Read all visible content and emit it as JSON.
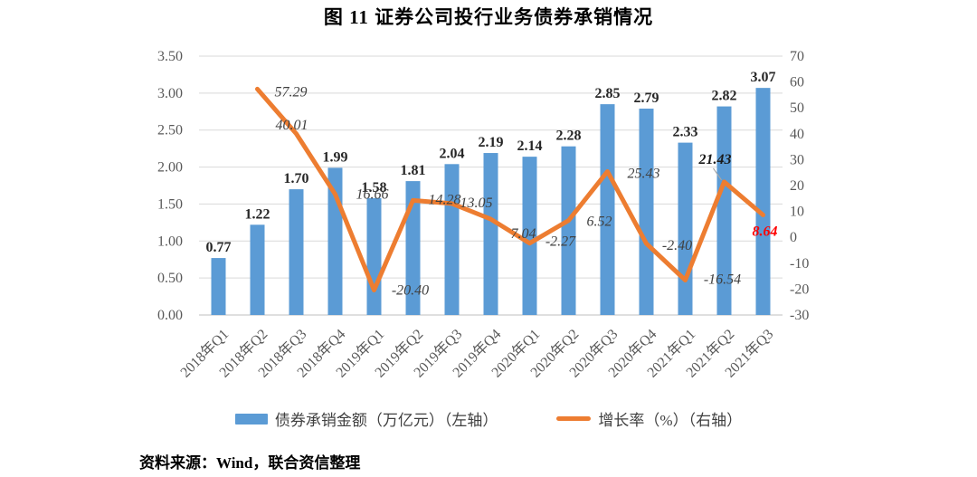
{
  "page": {
    "title": "图 11 证券公司投行业务债券承销情况",
    "source_note": "资料来源：Wind，联合资信整理"
  },
  "legend": {
    "bar_label": "债券承销金额（万亿元）（左轴）",
    "line_label": "增长率（%）（右轴）"
  },
  "colors": {
    "bar": "#5B9BD5",
    "line": "#ED7D31",
    "grid": "#D9D9D9",
    "axis_line": "#BFBFBF",
    "axis_text": "#595959",
    "bar_label_text": "#262626",
    "line_label_text": "#404040",
    "highlight_label_text": "#FF0000",
    "leader_line": "#A6A6A6"
  },
  "chart_data": {
    "type": "bar+line",
    "categories": [
      "2018年Q1",
      "2018年Q2",
      "2018年Q3",
      "2018年Q4",
      "2019年Q1",
      "2019年Q2",
      "2019年Q3",
      "2019年Q4",
      "2020年Q1",
      "2020年Q2",
      "2020年Q3",
      "2020年Q4",
      "2021年Q1",
      "2021年Q2",
      "2021年Q3"
    ],
    "series": [
      {
        "name": "债券承销金额（万亿元）（左轴）",
        "type": "bar",
        "axis": "left",
        "values": [
          0.77,
          1.22,
          1.7,
          1.99,
          1.58,
          1.81,
          2.04,
          2.19,
          2.14,
          2.28,
          2.85,
          2.79,
          2.33,
          2.82,
          3.07
        ]
      },
      {
        "name": "增长率（%）（右轴）",
        "type": "line",
        "axis": "right",
        "values": [
          null,
          57.29,
          40.01,
          16.66,
          -20.4,
          14.28,
          13.05,
          7.04,
          -2.27,
          6.52,
          25.43,
          -2.4,
          -16.54,
          21.43,
          8.64
        ]
      }
    ],
    "left_axis": {
      "min": 0,
      "max": 3.5,
      "step": 0.5,
      "ticks": [
        "0.00",
        "0.50",
        "1.00",
        "1.50",
        "2.00",
        "2.50",
        "3.00",
        "3.50"
      ]
    },
    "right_axis": {
      "min": -30,
      "max": 70,
      "step": 10,
      "ticks": [
        "-30",
        "-20",
        "-10",
        "0",
        "10",
        "20",
        "30",
        "40",
        "50",
        "60",
        "70"
      ]
    },
    "grid": true,
    "legend_position": "bottom",
    "annotations": {
      "bold_line_label": "21.43",
      "red_line_label": "8.64",
      "leader_line_at": "2021年Q2"
    }
  }
}
